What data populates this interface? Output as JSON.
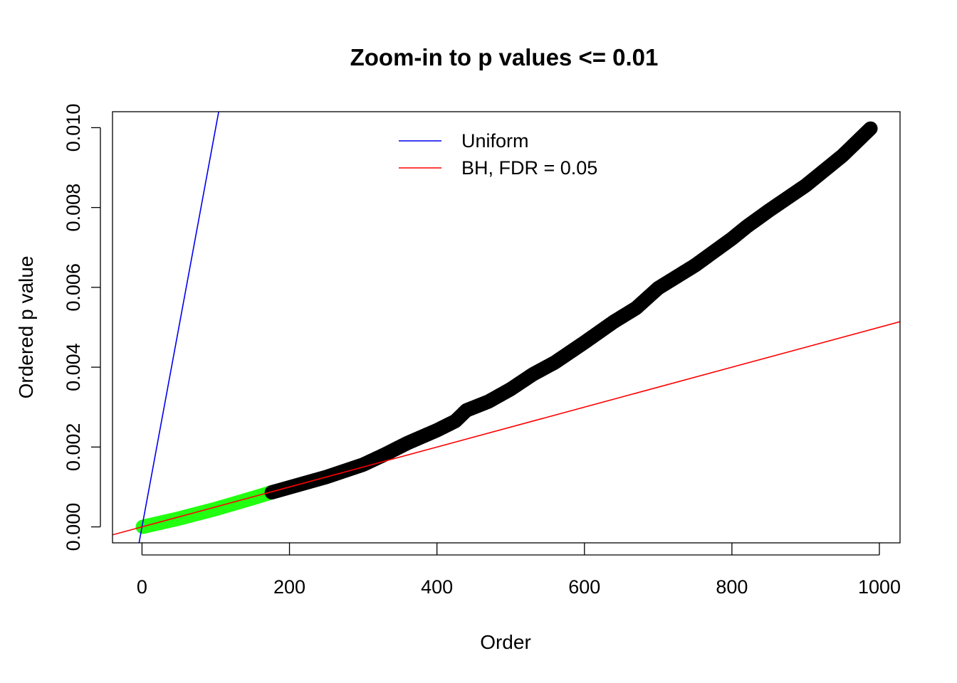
{
  "chart_data": {
    "type": "scatter",
    "title": "Zoom-in to p values <= 0.01",
    "xlabel": "Order",
    "ylabel": "Ordered p value",
    "xlim": [
      -40,
      1028
    ],
    "ylim": [
      -0.0004,
      0.0104
    ],
    "x_ticks": [
      0,
      200,
      400,
      600,
      800,
      1000
    ],
    "x_tick_labels": [
      "0",
      "200",
      "400",
      "600",
      "800",
      "1000"
    ],
    "y_ticks": [
      0,
      0.002,
      0.004,
      0.006,
      0.008,
      0.01
    ],
    "y_tick_labels": [
      "0.000",
      "0.002",
      "0.004",
      "0.006",
      "0.008",
      "0.010"
    ],
    "grid": false,
    "legend_position": "top-center",
    "n_points": 988,
    "significant_count": 175,
    "colors": {
      "significant": "#22ff11",
      "nonsignificant": "#000000",
      "uniform": "#0000ee",
      "bh": "#ff0000"
    },
    "reference_lines": [
      {
        "name": "Uniform",
        "slope": 0.0001,
        "intercept": 0,
        "color": "#0000ee"
      },
      {
        "name": "BH, FDR = 0.05",
        "slope": 5e-06,
        "intercept": 0,
        "color": "#ff0000"
      }
    ],
    "ordered_p_knots": [
      [
        1,
        2e-06
      ],
      [
        50,
        0.00021
      ],
      [
        100,
        0.00045
      ],
      [
        150,
        0.00072
      ],
      [
        175,
        0.00086
      ],
      [
        200,
        0.00099
      ],
      [
        250,
        0.00125
      ],
      [
        300,
        0.00156
      ],
      [
        330,
        0.00182
      ],
      [
        360,
        0.0021
      ],
      [
        400,
        0.00242
      ],
      [
        425,
        0.00265
      ],
      [
        440,
        0.00292
      ],
      [
        470,
        0.00314
      ],
      [
        500,
        0.00345
      ],
      [
        530,
        0.00382
      ],
      [
        560,
        0.00412
      ],
      [
        600,
        0.00462
      ],
      [
        640,
        0.00514
      ],
      [
        670,
        0.00548
      ],
      [
        700,
        0.00598
      ],
      [
        750,
        0.00655
      ],
      [
        800,
        0.00722
      ],
      [
        820,
        0.00752
      ],
      [
        850,
        0.00792
      ],
      [
        900,
        0.00855
      ],
      [
        950,
        0.0093
      ],
      [
        988,
        0.00998
      ]
    ],
    "legend": [
      {
        "label": "Uniform",
        "color": "#0000ee"
      },
      {
        "label": "BH, FDR = 0.05",
        "color": "#ff0000"
      }
    ]
  }
}
